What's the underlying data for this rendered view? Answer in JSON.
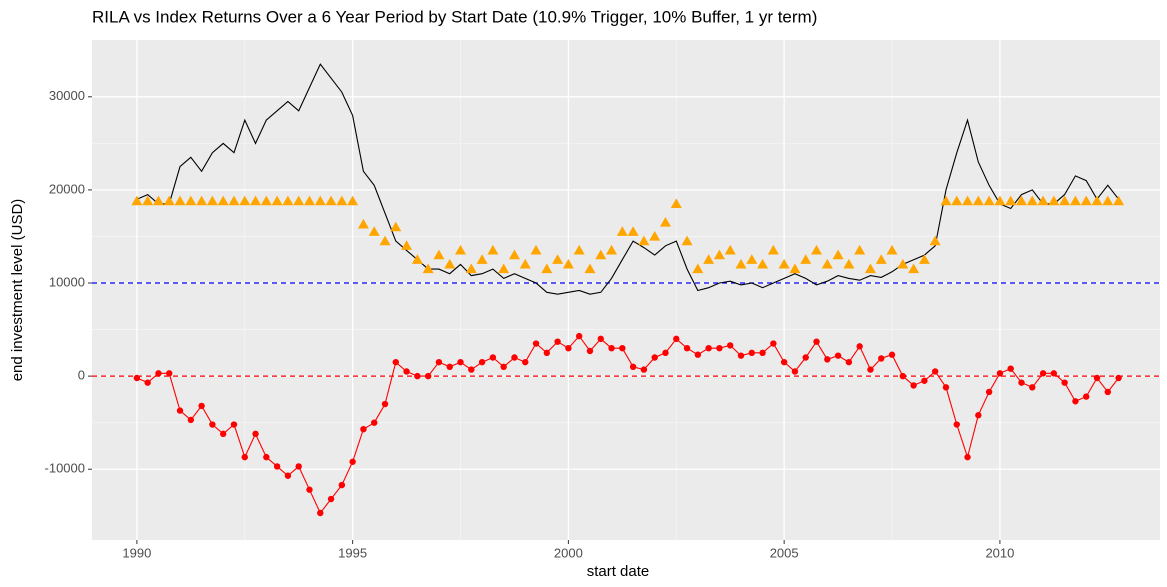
{
  "chart_data": {
    "type": "line",
    "title": "RILA vs Index Returns Over a 6 Year Period by Start Date (10.9% Trigger, 10% Buffer, 1 yr term)",
    "x_label": "start date",
    "y_label": "end investment level (USD)",
    "x": [
      1990,
      1990.25,
      1990.5,
      1990.75,
      1991,
      1991.25,
      1991.5,
      1991.75,
      1992,
      1992.25,
      1992.5,
      1992.75,
      1993,
      1993.25,
      1993.5,
      1993.75,
      1994,
      1994.25,
      1994.5,
      1994.75,
      1995,
      1995.25,
      1995.5,
      1995.75,
      1996,
      1996.25,
      1996.5,
      1996.75,
      1997,
      1997.25,
      1997.5,
      1997.75,
      1998,
      1998.25,
      1998.5,
      1998.75,
      1999,
      1999.25,
      1999.5,
      1999.75,
      2000,
      2000.25,
      2000.5,
      2000.75,
      2001,
      2001.25,
      2001.5,
      2001.75,
      2002,
      2002.25,
      2002.5,
      2002.75,
      2003,
      2003.25,
      2003.5,
      2003.75,
      2004,
      2004.25,
      2004.5,
      2004.75,
      2005,
      2005.25,
      2005.5,
      2005.75,
      2006,
      2006.25,
      2006.5,
      2006.75,
      2007,
      2007.25,
      2007.5,
      2007.75,
      2008,
      2008.25,
      2008.5,
      2008.75,
      2009,
      2009.25,
      2009.5,
      2009.75,
      2010,
      2010.25,
      2010.5,
      2010.75,
      2011,
      2011.25,
      2011.5,
      2011.75,
      2012,
      2012.25,
      2012.5,
      2012.75
    ],
    "series": [
      {
        "style": "line",
        "color": "#000000",
        "values": [
          19000,
          19500,
          18500,
          18500,
          22500,
          23500,
          22000,
          24000,
          25000,
          24000,
          27500,
          25000,
          27500,
          28500,
          29500,
          28500,
          31000,
          33500,
          32000,
          30500,
          28000,
          22000,
          20500,
          17500,
          14500,
          13500,
          12500,
          11500,
          11500,
          11000,
          12000,
          10800,
          11000,
          11500,
          10500,
          11000,
          10500,
          10000,
          9000,
          8800,
          9000,
          9200,
          8800,
          9000,
          10500,
          12500,
          14500,
          13800,
          13000,
          14000,
          14500,
          11500,
          9200,
          9500,
          10000,
          10200,
          9800,
          10000,
          9500,
          10000,
          10500,
          11000,
          10500,
          9800,
          10200,
          10800,
          10500,
          10300,
          10800,
          10600,
          11200,
          12000,
          12500,
          13000,
          14000,
          20000,
          24000,
          27500,
          23000,
          20500,
          18500,
          18000,
          19500,
          20000,
          18500,
          18500,
          19500,
          21500,
          21000,
          19000,
          20500,
          19000
        ]
      },
      {
        "style": "triangle",
        "color": "#ffa500",
        "values": [
          18800,
          18800,
          18800,
          18800,
          18800,
          18800,
          18800,
          18800,
          18800,
          18800,
          18800,
          18800,
          18800,
          18800,
          18800,
          18800,
          18800,
          18800,
          18800,
          18800,
          18800,
          16300,
          15500,
          14500,
          16000,
          14000,
          12500,
          11500,
          13000,
          12000,
          13500,
          11500,
          12500,
          13500,
          11500,
          13000,
          12000,
          13500,
          11500,
          12500,
          12000,
          13500,
          11500,
          13000,
          13500,
          15500,
          15500,
          14500,
          15000,
          16500,
          18500,
          14500,
          11500,
          12500,
          13000,
          13500,
          12000,
          12500,
          12000,
          13500,
          12000,
          11500,
          12500,
          13500,
          12000,
          13000,
          12000,
          13500,
          11500,
          12500,
          13500,
          12000,
          11500,
          12500,
          14500,
          18800,
          18800,
          18800,
          18800,
          18800,
          18800,
          18800,
          18800,
          18800,
          18800,
          18800,
          18800,
          18800,
          18800,
          18800,
          18800,
          18800
        ]
      },
      {
        "style": "point-line",
        "color": "#ff0000",
        "values": [
          -200,
          -700,
          300,
          300,
          -3700,
          -4700,
          -3200,
          -5200,
          -6200,
          -5200,
          -8700,
          -6200,
          -8700,
          -9700,
          -10700,
          -9700,
          -12200,
          -14700,
          -13200,
          -11700,
          -9200,
          -5700,
          -5000,
          -3000,
          1500,
          500,
          0,
          0,
          1500,
          1000,
          1500,
          700,
          1500,
          2000,
          1000,
          2000,
          1500,
          3500,
          2500,
          3700,
          3000,
          4300,
          2700,
          4000,
          3000,
          3000,
          1000,
          700,
          2000,
          2500,
          4000,
          3000,
          2300,
          3000,
          3000,
          3300,
          2200,
          2500,
          2500,
          3500,
          1500,
          500,
          2000,
          3700,
          1800,
          2200,
          1500,
          3200,
          700,
          1900,
          2300,
          0,
          -1000,
          -500,
          500,
          -1200,
          -5200,
          -8700,
          -4200,
          -1700,
          300,
          800,
          -700,
          -1200,
          300,
          300,
          -700,
          -2700,
          -2200,
          -200,
          -1700,
          -200
        ]
      }
    ],
    "hlines": [
      {
        "value": 10000,
        "color": "#0000ff"
      },
      {
        "value": 0,
        "color": "#ff0000"
      }
    ],
    "xlim": [
      1988.96,
      2013.71
    ],
    "xticks": [
      1990,
      1995,
      2000,
      2005,
      2010
    ],
    "ylim": [
      -17600,
      36100
    ],
    "yticks": [
      -10000,
      0,
      10000,
      20000,
      30000
    ],
    "grid": true
  }
}
